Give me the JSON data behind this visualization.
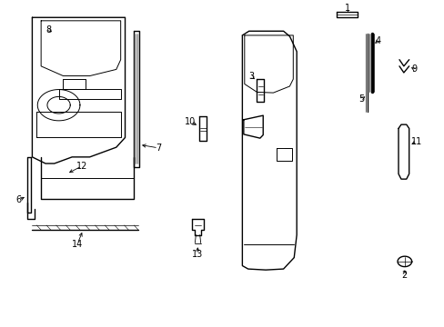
{
  "background_color": "#ffffff",
  "line_color": "#000000",
  "fig_width": 4.89,
  "fig_height": 3.6,
  "dpi": 100,
  "lfs": 7.0
}
